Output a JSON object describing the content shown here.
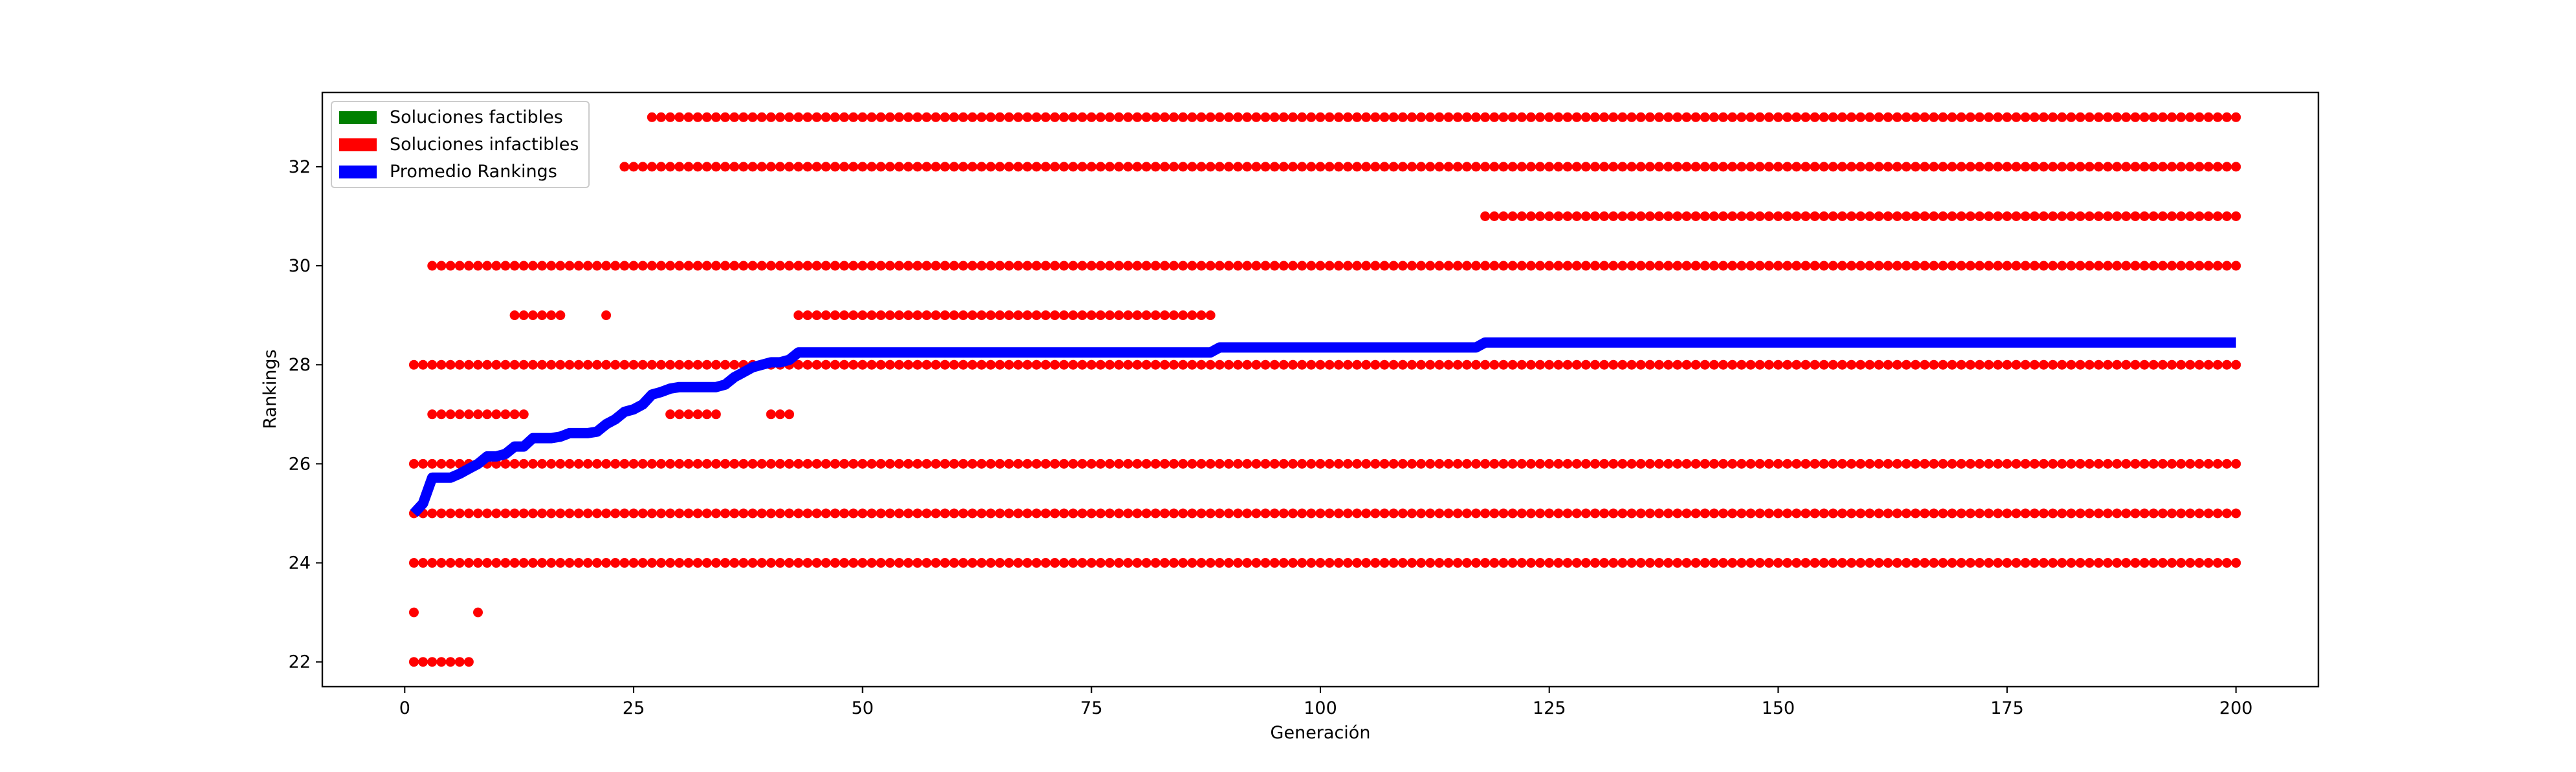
{
  "chart_data": {
    "type": "scatter",
    "title": "",
    "xlabel": "Generación",
    "ylabel": "Rankings",
    "xlim": [
      -9,
      209
    ],
    "ylim": [
      21.5,
      33.5
    ],
    "x_ticks": [
      0,
      25,
      50,
      75,
      100,
      125,
      150,
      175,
      200
    ],
    "y_ticks": [
      22,
      24,
      26,
      28,
      30,
      32
    ],
    "grid": false,
    "legend_position": "upper-left",
    "legend": [
      {
        "label": "Soluciones factibles",
        "color": "#008000"
      },
      {
        "label": "Soluciones infactibles",
        "color": "#ff0000"
      },
      {
        "label": "Promedio Rankings",
        "color": "#0000ff"
      }
    ],
    "series": [
      {
        "name": "Soluciones infactibles",
        "kind": "points",
        "color": "#ff0000",
        "groups": [
          {
            "y": 22,
            "ranges": [
              [
                1,
                7
              ]
            ]
          },
          {
            "y": 23,
            "ranges": [
              [
                1,
                1
              ],
              [
                8,
                8
              ]
            ]
          },
          {
            "y": 24,
            "ranges": [
              [
                1,
                200
              ]
            ]
          },
          {
            "y": 25,
            "ranges": [
              [
                1,
                200
              ]
            ]
          },
          {
            "y": 26,
            "ranges": [
              [
                1,
                200
              ]
            ]
          },
          {
            "y": 27,
            "ranges": [
              [
                3,
                13
              ],
              [
                29,
                34
              ],
              [
                40,
                42
              ]
            ]
          },
          {
            "y": 28,
            "ranges": [
              [
                1,
                200
              ]
            ]
          },
          {
            "y": 29,
            "ranges": [
              [
                12,
                17
              ],
              [
                22,
                22
              ],
              [
                43,
                88
              ]
            ]
          },
          {
            "y": 30,
            "ranges": [
              [
                3,
                200
              ]
            ]
          },
          {
            "y": 31,
            "ranges": [
              [
                118,
                200
              ]
            ]
          },
          {
            "y": 32,
            "ranges": [
              [
                24,
                200
              ]
            ]
          },
          {
            "y": 33,
            "ranges": [
              [
                27,
                200
              ]
            ]
          }
        ]
      },
      {
        "name": "Promedio Rankings",
        "kind": "line",
        "color": "#0000ff",
        "points": [
          [
            1,
            25.0
          ],
          [
            2,
            25.2
          ],
          [
            3,
            25.72
          ],
          [
            4,
            25.72
          ],
          [
            5,
            25.72
          ],
          [
            6,
            25.8
          ],
          [
            7,
            25.9
          ],
          [
            8,
            26.0
          ],
          [
            9,
            26.15
          ],
          [
            10,
            26.15
          ],
          [
            11,
            26.2
          ],
          [
            12,
            26.35
          ],
          [
            13,
            26.35
          ],
          [
            14,
            26.52
          ],
          [
            15,
            26.52
          ],
          [
            16,
            26.52
          ],
          [
            17,
            26.55
          ],
          [
            18,
            26.62
          ],
          [
            19,
            26.62
          ],
          [
            20,
            26.62
          ],
          [
            21,
            26.65
          ],
          [
            22,
            26.8
          ],
          [
            23,
            26.9
          ],
          [
            24,
            27.05
          ],
          [
            25,
            27.1
          ],
          [
            26,
            27.2
          ],
          [
            27,
            27.4
          ],
          [
            28,
            27.45
          ],
          [
            29,
            27.52
          ],
          [
            30,
            27.55
          ],
          [
            31,
            27.55
          ],
          [
            32,
            27.55
          ],
          [
            33,
            27.55
          ],
          [
            34,
            27.55
          ],
          [
            35,
            27.6
          ],
          [
            36,
            27.75
          ],
          [
            37,
            27.85
          ],
          [
            38,
            27.95
          ],
          [
            39,
            28.0
          ],
          [
            40,
            28.05
          ],
          [
            41,
            28.05
          ],
          [
            42,
            28.1
          ],
          [
            43,
            28.25
          ],
          [
            44,
            28.25
          ],
          [
            60,
            28.25
          ],
          [
            80,
            28.25
          ],
          [
            88,
            28.25
          ],
          [
            89,
            28.35
          ],
          [
            90,
            28.35
          ],
          [
            117,
            28.35
          ],
          [
            118,
            28.45
          ],
          [
            119,
            28.45
          ],
          [
            150,
            28.45
          ],
          [
            200,
            28.45
          ]
        ]
      }
    ]
  }
}
